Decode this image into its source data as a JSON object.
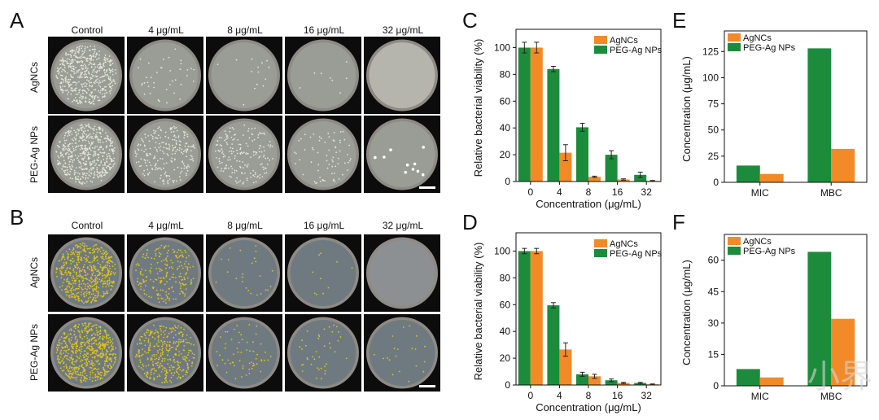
{
  "panel_labels": {
    "A": "A",
    "B": "B",
    "C": "C",
    "D": "D",
    "E": "E",
    "F": "F"
  },
  "plates": {
    "columns": [
      "Control",
      "4 μg/mL",
      "8 μg/mL",
      "16 μg/mL",
      "32 μg/mL"
    ],
    "rows": [
      "AgNCs",
      "PEG-Ag NPs"
    ],
    "colony_color_A": "#e4e4dc",
    "colony_color_B": "#e0c41a",
    "agar_color_A": "#9a9d95",
    "agar_color_B": "#6f7a80"
  },
  "watermark": "小界",
  "chart_data": [
    {
      "id": "C",
      "type": "bar",
      "categories": [
        "0",
        "4",
        "8",
        "16",
        "32"
      ],
      "series": [
        {
          "name": "AgNCs",
          "color": "#f28a28",
          "values": [
            100,
            21.5,
            3.5,
            1.5,
            0.5
          ],
          "errors": [
            4,
            6,
            0.5,
            0.5,
            0.3
          ]
        },
        {
          "name": "PEG-Ag NPs",
          "color": "#1c8c3c",
          "values": [
            100,
            84,
            40.5,
            20,
            5
          ],
          "errors": [
            4,
            2,
            3,
            3,
            2
          ]
        }
      ],
      "order": [
        "PEG-Ag NPs",
        "AgNCs"
      ],
      "xlabel": "Concentration (μg/mL)",
      "ylabel": "Relative bacterial viability (%)",
      "ylim": [
        0,
        110
      ],
      "yticks": [
        0,
        20,
        40,
        60,
        80,
        100
      ],
      "legend": "top-right"
    },
    {
      "id": "D",
      "type": "bar",
      "categories": [
        "0",
        "4",
        "8",
        "16",
        "32"
      ],
      "series": [
        {
          "name": "AgNCs",
          "color": "#f28a28",
          "values": [
            100,
            26.5,
            6.5,
            1.5,
            0.5
          ],
          "errors": [
            2,
            5,
            1.5,
            0.5,
            0.3
          ]
        },
        {
          "name": "PEG-Ag NPs",
          "color": "#1c8c3c",
          "values": [
            100,
            59.5,
            8,
            3.5,
            1.5
          ],
          "errors": [
            2,
            2,
            1.5,
            1,
            0.5
          ]
        }
      ],
      "order": [
        "PEG-Ag NPs",
        "AgNCs"
      ],
      "xlabel": "Concentration (μg/mL)",
      "ylabel": "Relative bacterial viability (%)",
      "ylim": [
        0,
        110
      ],
      "yticks": [
        0,
        20,
        40,
        60,
        80,
        100
      ],
      "legend": "top-right"
    },
    {
      "id": "E",
      "type": "bar",
      "categories": [
        "MIC",
        "MBC"
      ],
      "series": [
        {
          "name": "AgNCs",
          "color": "#f28a28",
          "values": [
            8,
            32
          ]
        },
        {
          "name": "PEG-Ag NPs",
          "color": "#1c8c3c",
          "values": [
            16,
            128
          ]
        }
      ],
      "order": [
        "PEG-Ag NPs",
        "AgNCs"
      ],
      "xlabel": "",
      "ylabel": "Concentration (μg/mL)",
      "ylim": [
        0,
        140
      ],
      "yticks": [
        0,
        25,
        50,
        75,
        100,
        125
      ],
      "legend": "top-left"
    },
    {
      "id": "F",
      "type": "bar",
      "categories": [
        "MIC",
        "MBC"
      ],
      "series": [
        {
          "name": "AgNCs",
          "color": "#f28a28",
          "values": [
            4,
            32
          ]
        },
        {
          "name": "PEG-Ag NPs",
          "color": "#1c8c3c",
          "values": [
            8,
            64
          ]
        }
      ],
      "order": [
        "PEG-Ag NPs",
        "AgNCs"
      ],
      "xlabel": "",
      "ylabel": "Concentration (μg/mL)",
      "ylim": [
        0,
        70
      ],
      "yticks": [
        0,
        15,
        30,
        45,
        60
      ],
      "legend": "top-left"
    }
  ]
}
